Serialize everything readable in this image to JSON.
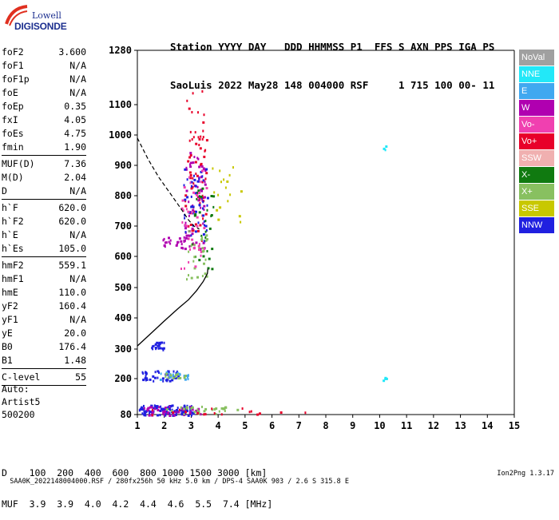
{
  "logo": {
    "line1": "Lowell",
    "line2": "DIGISONDE"
  },
  "header": {
    "line1": "Station YYYY DAY   DDD HHMMSS P1  FFS S AXN PPS IGA PS",
    "line2": "SaoLuis 2022 May28 148 004000 RSF     1 715 100 00- 11"
  },
  "params": [
    {
      "name": "foF2",
      "value": "3.600"
    },
    {
      "name": "foF1",
      "value": "N/A"
    },
    {
      "name": "foF1p",
      "value": "N/A"
    },
    {
      "name": "foE",
      "value": "N/A"
    },
    {
      "name": "foEp",
      "value": "0.35"
    },
    {
      "name": "fxI",
      "value": "4.05"
    },
    {
      "name": "foEs",
      "value": "4.75"
    },
    {
      "name": "fmin",
      "value": "1.90",
      "sep_after": true
    },
    {
      "name": "MUF(D)",
      "value": "7.36"
    },
    {
      "name": "M(D)",
      "value": "2.04"
    },
    {
      "name": "D",
      "value": "N/A",
      "sep_after": true
    },
    {
      "name": "h`F",
      "value": "620.0"
    },
    {
      "name": "h`F2",
      "value": "620.0"
    },
    {
      "name": "h`E",
      "value": "N/A"
    },
    {
      "name": "h`Es",
      "value": "105.0",
      "sep_after": true
    },
    {
      "name": "hmF2",
      "value": "559.1"
    },
    {
      "name": "hmF1",
      "value": "N/A"
    },
    {
      "name": "hmE",
      "value": "110.0"
    },
    {
      "name": "yF2",
      "value": "160.4"
    },
    {
      "name": "yF1",
      "value": "N/A"
    },
    {
      "name": "yE",
      "value": "20.0"
    },
    {
      "name": "B0",
      "value": "176.4"
    },
    {
      "name": "B1",
      "value": "1.48",
      "sep_after": true
    },
    {
      "name": "C-level",
      "value": "55",
      "sep_after": true
    }
  ],
  "extra": {
    "auto_label": "Auto:",
    "artist": "Artist5",
    "version": "500200"
  },
  "legend": [
    {
      "label": "NoVal",
      "color": "#a0a0a0"
    },
    {
      "label": "NNE",
      "color": "#22e8f8"
    },
    {
      "label": "E",
      "color": "#40a8f0"
    },
    {
      "label": "W",
      "color": "#b000b0"
    },
    {
      "label": "Vo-",
      "color": "#f040b0"
    },
    {
      "label": "Vo+",
      "color": "#e8002a"
    },
    {
      "label": "SSW",
      "color": "#f0b0b0"
    },
    {
      "label": "X-",
      "color": "#107a10"
    },
    {
      "label": "X+",
      "color": "#88c060"
    },
    {
      "label": "SSE",
      "color": "#c8c800"
    },
    {
      "label": "NNW",
      "color": "#2020e0"
    }
  ],
  "muf_table": {
    "row1": "D    100  200  400  600  800 1000 1500 3000 [km]",
    "row2": "MUF  3.9  3.9  4.0  4.2  4.4  4.6  5.5  7.4 [MHz]"
  },
  "footer": {
    "left": "SAA0K_2022148004000.RSF / 280fx256h 50 kHz 5.0 km / DPS-4 SAA0K 903 / 2.6 S 315.8 E",
    "right": "Ion2Png 1.3.17"
  },
  "chart_data": {
    "type": "scatter",
    "xlim": [
      1,
      15
    ],
    "ylim": [
      80,
      1280
    ],
    "x_ticks": [
      1,
      2,
      3,
      4,
      5,
      6,
      7,
      8,
      9,
      10,
      11,
      12,
      13,
      14,
      15
    ],
    "y_ticks": [
      80,
      200,
      300,
      400,
      500,
      600,
      700,
      800,
      900,
      1000,
      1100,
      1280
    ],
    "grid": false,
    "profile_curve": {
      "x": [
        1.0,
        1.5,
        2.0,
        2.5,
        2.9,
        3.2,
        3.45,
        3.6,
        3.62
      ],
      "y": [
        310,
        350,
        390,
        430,
        460,
        490,
        520,
        545,
        560
      ]
    },
    "dashed_curve": {
      "x": [
        1.0,
        1.4,
        1.8,
        2.2,
        2.6,
        2.9,
        3.1,
        3.3
      ],
      "y": [
        990,
        920,
        860,
        810,
        760,
        720,
        700,
        690
      ]
    },
    "clusters": [
      {
        "name": "Vo+",
        "x_range": [
          2.75,
          3.55
        ],
        "y_range": [
          640,
          1150
        ],
        "count": 70
      },
      {
        "name": "W",
        "x_range": [
          2.7,
          3.5
        ],
        "y_range": [
          620,
          960
        ],
        "count": 65
      },
      {
        "name": "NNW",
        "x_range": [
          2.7,
          3.6
        ],
        "y_range": [
          650,
          900
        ],
        "count": 45
      },
      {
        "name": "X-",
        "x_range": [
          3.0,
          3.8
        ],
        "y_range": [
          560,
          830
        ],
        "count": 30
      },
      {
        "name": "X+",
        "x_range": [
          2.8,
          3.6
        ],
        "y_range": [
          530,
          700
        ],
        "count": 25
      },
      {
        "name": "SSE",
        "x_range": [
          3.7,
          4.9
        ],
        "y_range": [
          700,
          920
        ],
        "count": 18
      },
      {
        "name": "Vo-",
        "x_range": [
          2.6,
          3.6
        ],
        "y_range": [
          560,
          900
        ],
        "count": 35
      },
      {
        "name": "W",
        "x_range": [
          1.9,
          2.8
        ],
        "y_range": [
          630,
          665
        ],
        "count": 22
      },
      {
        "name": "NNW",
        "x_range": [
          1.05,
          3.1
        ],
        "y_range": [
          80,
          115
        ],
        "count": 110
      },
      {
        "name": "W",
        "x_range": [
          1.1,
          3.3
        ],
        "y_range": [
          80,
          110
        ],
        "count": 40
      },
      {
        "name": "X+",
        "x_range": [
          2.0,
          4.7
        ],
        "y_range": [
          85,
          110
        ],
        "count": 30
      },
      {
        "name": "Vo+",
        "x_range": [
          1.5,
          7.5
        ],
        "y_range": [
          82,
          105
        ],
        "count": 18
      },
      {
        "name": "NNW",
        "x_range": [
          1.1,
          2.5
        ],
        "y_range": [
          195,
          230
        ],
        "count": 45
      },
      {
        "name": "E",
        "x_range": [
          1.7,
          2.9
        ],
        "y_range": [
          200,
          225
        ],
        "count": 20
      },
      {
        "name": "X+",
        "x_range": [
          2.0,
          2.8
        ],
        "y_range": [
          205,
          220
        ],
        "count": 12
      },
      {
        "name": "NNW",
        "x_range": [
          1.5,
          2.0
        ],
        "y_range": [
          300,
          325
        ],
        "count": 22
      },
      {
        "name": "NNE",
        "x_range": [
          10.1,
          10.25
        ],
        "y_range": [
          195,
          210
        ],
        "count": 4
      },
      {
        "name": "NNE",
        "x_range": [
          10.1,
          10.25
        ],
        "y_range": [
          950,
          975
        ],
        "count": 3
      }
    ]
  }
}
